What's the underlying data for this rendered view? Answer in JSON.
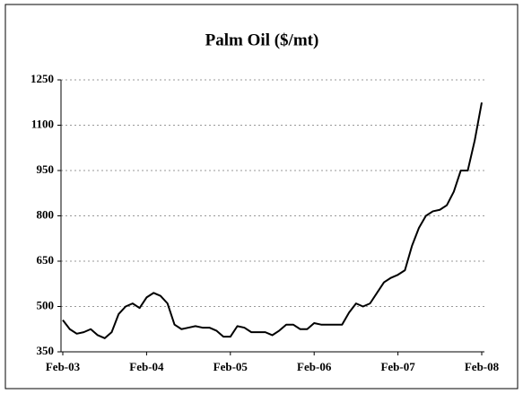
{
  "chart_data": {
    "type": "line",
    "title": "Palm Oil ($/mt)",
    "categories": [
      "Feb-03",
      null,
      null,
      null,
      null,
      null,
      null,
      null,
      null,
      null,
      null,
      null,
      "Feb-04",
      null,
      null,
      null,
      null,
      null,
      null,
      null,
      null,
      null,
      null,
      null,
      "Feb-05",
      null,
      null,
      null,
      null,
      null,
      null,
      null,
      null,
      null,
      null,
      null,
      "Feb-06",
      null,
      null,
      null,
      null,
      null,
      null,
      null,
      null,
      null,
      null,
      null,
      "Feb-07",
      null,
      null,
      null,
      null,
      null,
      null,
      null,
      null,
      null,
      null,
      null,
      "Feb-08"
    ],
    "values": [
      455,
      425,
      410,
      415,
      425,
      405,
      395,
      415,
      475,
      500,
      510,
      495,
      530,
      545,
      535,
      510,
      440,
      425,
      430,
      435,
      430,
      430,
      420,
      400,
      400,
      435,
      430,
      415,
      415,
      415,
      405,
      420,
      440,
      440,
      425,
      425,
      445,
      440,
      440,
      440,
      440,
      480,
      510,
      500,
      510,
      545,
      580,
      595,
      605,
      620,
      700,
      760,
      800,
      815,
      820,
      835,
      880,
      950,
      950,
      1050,
      1175
    ],
    "color": "#000000",
    "ylim": [
      350,
      1250
    ],
    "yticks": [
      350,
      500,
      650,
      800,
      950,
      1100,
      1250
    ],
    "grid": true
  }
}
